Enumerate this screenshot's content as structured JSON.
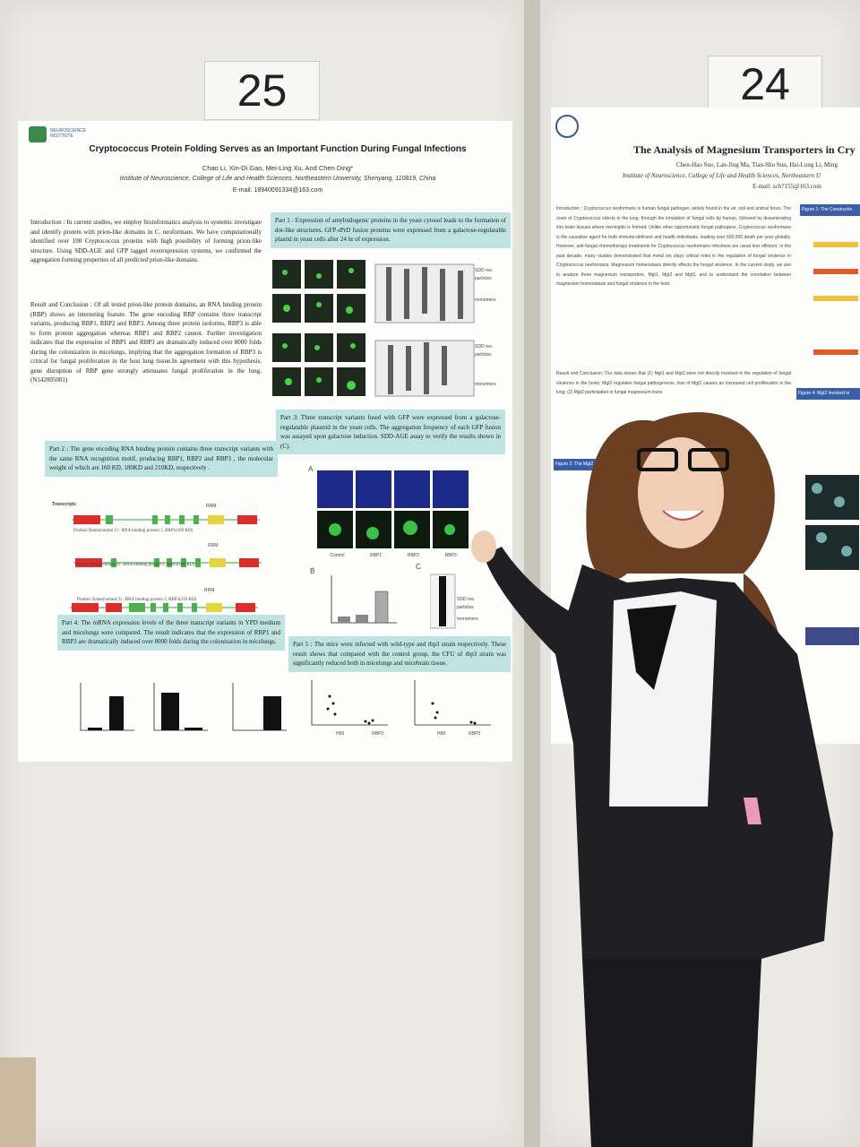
{
  "left_poster": {
    "number": "25",
    "logo": "NEUROSCIENCE INSTITUTE",
    "title": "Cryptococcus Protein Folding Serves as an Important Function During Fungal Infections",
    "authors": "Chao Li, Xin-Di Gao, Mei-Ling Xu, And Chen Ding*",
    "affiliation": "Institute of Neuroscience, College of Life and Health Sciences, Northeastern University, Shenyang, 110819, China",
    "email": "E-mail: 18940091334@163.com",
    "introduction": "Introduction : In current studies, we employ bioinformatics analysis to systemic investigate and identify protein with prion-like domains in C. neoformans. We have computationally identified over 100 Cryptococcus proteins with high possibility of forming prion-like structure. Using SDD-AGE and GFP tagged overexpression systems, we confirmed the aggregation forming properties of all predicted prion-like domains.",
    "result": "Result and Conclusion : Of all tested prion-like protein domains, an RNA binding protein (RBP) shows an interesting feature. The gene encoding RBP contains three transcript variants, producing RBP1, RBP2 and RBP3. Among three protein isoforms, RBP3 is able to form protein aggregation whereas RBP1 and RBP2 cannot. Further investigation indicates that the expression of RBP1 and RBP3 are dramatically induced over 8000 folds during the colonization in micelungs, implying that the aggregation formation of RBP3 is critical for fungal proliferation in the host lung tissue.In agreement with this hypothesis, gene disruption of RBP gene strongly attenuates fungal proliferation in the lung. (N142005001)",
    "part2": "Part 2 : The gene encoding RNA binding protein contains three transcript variants with the same RNA recognition motif, producing RBP1, RBP2 and RBP3 , the molecular weight of which are 160 KD, 180KD and 210KD, respectively .",
    "transcripts_label": "Transcripts",
    "rrm": "RRM",
    "variants": [
      "Product Name(variant 1) : RNA binding protein 1, RBP1(160 KD)",
      "Product Name(variant 2) : RNA binding protein 2, RBP2(180 KD)",
      "Product Name(variant 3) : RNA binding protein 3, RBP3(210 KD)"
    ],
    "part4": "Part 4: The mRNA expression levels of the three transcript variants in YPD medium and micelungs were compared. The result indicates that the expression of RBP1 and RBP3 are dramatically induced over 8000 folds during the colonization in micelungs.",
    "part1": "Part 1 : Expression of amyloidogenic proteins in the yeast cytosol leads to the formation of dot-like structures. GFP-rPrD fusion proteins were expressed from a galactose-regulatable plastid in yeast cells after 24 hr of expression.",
    "gel_labels": [
      "SDD res. particles",
      "monomers"
    ],
    "part3": "Part 3: Three transcript variants fused with GFP were expressed from a galactose-regulatable plasmid in the yeast cells. The aggregation frequency of each GFP fusion was assayed upon galactose induction. SDD-AGE assay to verify the results shown in (C).",
    "panel_letters": [
      "A",
      "B",
      "C"
    ],
    "panel_a_labels": [
      "Control",
      "RBP1",
      "RBP2",
      "RBP3"
    ],
    "part5": "Part 5 : The mice were infected with wild-type and rbp3 strain respectively. These result shows that compared with the control group, the CFU of rbp3 strain was significantly reduced both in micelungs and micebrain tissue.",
    "part5_labels": [
      "H99",
      "RBP3"
    ]
  },
  "right_poster": {
    "number": "24",
    "title": "The Analysis of Magnesium Transporters in Cry",
    "authors": "Chen-Hao Suo,  Lan-Jing Ma,  Tian-Shu Sun,  Hai-Long Li,  Ming",
    "affiliation": "Institute of Neuroscience, College of Life and Health Sciences, Northeastern U",
    "email": "E-mail: sch7155@163.com",
    "introduction": "Introduction : Cryptococcus neoformans is human fungal pathogen, widely found in the air, soil and animal feces. The route of Cryptococcus infects in the lung, through the inhalation of fungal cells by human, followed by disseminating into brain tissues where meningitis is formed. Unlike other opportunistic fungal pathogens, Cryptococcus neoformans is the causative agent for both immune-deficient and health individuals, leading over 600,000 death per year globally. However, anti-fungal chemotherapy treatments for Cryptococcus neoformans infections are usual less efficient. In the past decade, many studies demonstrated that metal ion plays critical roles in the regulation of fungal virulence in Cryptococcus neoformans. Magnesium homeostasis directly effects the fungal virulence. In the current study, we aim to analyze three magnesium transporters, Mgt1, Mgt2 and Mgt3, and to understand the correlation between magnesium homeostasis and fungal virulence in the host.",
    "result": "Result and Conclusion: Our data shows that (1) Mgt1 and Mgt3 were not directly involved in the regulation of fungal virulence in the hosts; Mgt2 regulates fungal pathogenesis, loss of Mgt2 causes an increased cell proliferation in the lung; (2) Mgt2 participated in fungal magnesium trans",
    "figure_headings": [
      "Figure 1: The Constructio",
      "Figure 2: The Mgt2 mutant shows de",
      "Figure 4: Mgt2 involved in"
    ]
  }
}
